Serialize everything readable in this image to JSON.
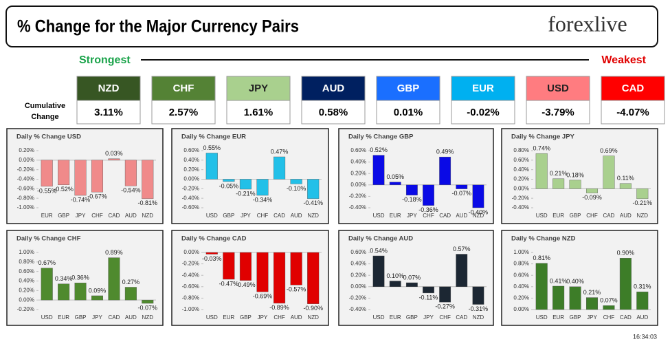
{
  "header": {
    "title": "% Change for the Major Currency Pairs",
    "logo": "forexlive"
  },
  "strongest": "Strongest",
  "weakest": "Weakest",
  "cumulative_label": "Cumulative Change",
  "ranking": [
    {
      "currency": "NZD",
      "change": "3.11%",
      "color": "#375623"
    },
    {
      "currency": "CHF",
      "change": "2.57%",
      "color": "#548235"
    },
    {
      "currency": "JPY",
      "change": "1.61%",
      "color": "#a9d08e"
    },
    {
      "currency": "AUD",
      "change": "0.58%",
      "color": "#002060"
    },
    {
      "currency": "GBP",
      "change": "0.01%",
      "color": "#1a6fff"
    },
    {
      "currency": "EUR",
      "change": "-0.02%",
      "color": "#00b0f0"
    },
    {
      "currency": "USD",
      "change": "-3.79%",
      "color": "#ff7c80"
    },
    {
      "currency": "CAD",
      "change": "-4.07%",
      "color": "#ff0000"
    }
  ],
  "chart_data": [
    {
      "type": "bar",
      "title": "Daily % Change USD",
      "color": "#f08a8a",
      "categories": [
        "EUR",
        "GBP",
        "JPY",
        "CHF",
        "CAD",
        "AUD",
        "NZD"
      ],
      "values": [
        -0.55,
        -0.52,
        -0.74,
        -0.67,
        0.03,
        -0.54,
        -0.81
      ],
      "value_labels": [
        "-0.55%",
        "-0.52%",
        "-0.74%",
        "-0.67%",
        "0.03%",
        "-0.54%",
        "-0.81%"
      ],
      "ylim": [
        -1.0,
        0.2
      ],
      "yticks": [
        {
          "value": 0.2,
          "label": "0.20%"
        },
        {
          "value": 0,
          "label": "0.00%"
        },
        {
          "value": -0.2,
          "label": "-0.20%"
        },
        {
          "value": -0.4,
          "label": "-0.40%"
        },
        {
          "value": -0.6,
          "label": "-0.60%"
        },
        {
          "value": -0.8,
          "label": "-0.80%"
        },
        {
          "value": -1.0,
          "label": "-1.00%"
        }
      ]
    },
    {
      "type": "bar",
      "title": "Daily % Change EUR",
      "color": "#22c0e8",
      "categories": [
        "USD",
        "GBP",
        "JPY",
        "CHF",
        "CAD",
        "AUD",
        "NZD"
      ],
      "values": [
        0.55,
        -0.05,
        -0.21,
        -0.34,
        0.47,
        -0.1,
        -0.41
      ],
      "value_labels": [
        "0.55%",
        "-0.05%",
        "-0.21%",
        "-0.34%",
        "0.47%",
        "-0.10%",
        "-0.41%"
      ],
      "ylim": [
        -0.6,
        0.6
      ],
      "yticks": [
        {
          "value": 0.6,
          "label": "0.60%"
        },
        {
          "value": 0.4,
          "label": "0.40%"
        },
        {
          "value": 0.2,
          "label": "0.20%"
        },
        {
          "value": 0,
          "label": "0.00%"
        },
        {
          "value": -0.2,
          "label": "-0.20%"
        },
        {
          "value": -0.4,
          "label": "-0.40%"
        },
        {
          "value": -0.6,
          "label": "-0.60%"
        }
      ]
    },
    {
      "type": "bar",
      "title": "Daily % Change GBP",
      "color": "#0a0ae6",
      "categories": [
        "USD",
        "EUR",
        "JPY",
        "CHF",
        "CAD",
        "AUD",
        "NZD"
      ],
      "values": [
        0.52,
        0.05,
        -0.18,
        -0.36,
        0.49,
        -0.07,
        -0.4
      ],
      "value_labels": [
        "0.52%",
        "0.05%",
        "-0.18%",
        "-0.36%",
        "0.49%",
        "-0.07%",
        "-0.40%"
      ],
      "ylim": [
        -0.4,
        0.6
      ],
      "yticks": [
        {
          "value": 0.6,
          "label": "0.60%"
        },
        {
          "value": 0.4,
          "label": "0.40%"
        },
        {
          "value": 0.2,
          "label": "0.20%"
        },
        {
          "value": 0,
          "label": "0.00%"
        },
        {
          "value": -0.2,
          "label": "-0.20%"
        },
        {
          "value": -0.4,
          "label": "-0.40%"
        }
      ]
    },
    {
      "type": "bar",
      "title": "Daily % Change JPY",
      "color": "#a9d08e",
      "categories": [
        "USD",
        "EUR",
        "GBP",
        "CHF",
        "CAD",
        "AUD",
        "NZD"
      ],
      "values": [
        0.74,
        0.21,
        0.18,
        -0.09,
        0.69,
        0.11,
        -0.21
      ],
      "value_labels": [
        "0.74%",
        "0.21%",
        "0.18%",
        "-0.09%",
        "0.69%",
        "0.11%",
        "-0.21%"
      ],
      "ylim": [
        -0.4,
        0.8
      ],
      "yticks": [
        {
          "value": 0.8,
          "label": "0.80%"
        },
        {
          "value": 0.6,
          "label": "0.60%"
        },
        {
          "value": 0.4,
          "label": "0.40%"
        },
        {
          "value": 0.2,
          "label": "0.20%"
        },
        {
          "value": 0,
          "label": "0.00%"
        },
        {
          "value": -0.2,
          "label": "-0.20%"
        },
        {
          "value": -0.4,
          "label": "-0.40%"
        }
      ]
    },
    {
      "type": "bar",
      "title": "Daily % Change CHF",
      "color": "#4f8a2e",
      "categories": [
        "USD",
        "EUR",
        "GBP",
        "JPY",
        "CAD",
        "AUD",
        "NZD"
      ],
      "values": [
        0.67,
        0.34,
        0.36,
        0.09,
        0.89,
        0.27,
        -0.07
      ],
      "value_labels": [
        "0.67%",
        "0.34%",
        "0.36%",
        "0.09%",
        "0.89%",
        "0.27%",
        "-0.07%"
      ],
      "ylim": [
        -0.2,
        1.0
      ],
      "yticks": [
        {
          "value": 1.0,
          "label": "1.00%"
        },
        {
          "value": 0.8,
          "label": "0.80%"
        },
        {
          "value": 0.6,
          "label": "0.60%"
        },
        {
          "value": 0.4,
          "label": "0.40%"
        },
        {
          "value": 0.2,
          "label": "0.20%"
        },
        {
          "value": 0,
          "label": "0.00%"
        },
        {
          "value": -0.2,
          "label": "-0.20%"
        }
      ]
    },
    {
      "type": "bar",
      "title": "Daily % Change CAD",
      "color": "#e00000",
      "categories": [
        "USD",
        "EUR",
        "GBP",
        "JPY",
        "CHF",
        "AUD",
        "NZD"
      ],
      "values": [
        -0.03,
        -0.47,
        -0.49,
        -0.69,
        -0.89,
        -0.57,
        -0.9
      ],
      "value_labels": [
        "-0.03%",
        "-0.47%",
        "-0.49%",
        "-0.69%",
        "-0.89%",
        "-0.57%",
        "-0.90%"
      ],
      "ylim": [
        -1.0,
        0.0
      ],
      "yticks": [
        {
          "value": 0,
          "label": "0.00%"
        },
        {
          "value": -0.2,
          "label": "-0.20%"
        },
        {
          "value": -0.4,
          "label": "-0.40%"
        },
        {
          "value": -0.6,
          "label": "-0.60%"
        },
        {
          "value": -0.8,
          "label": "-0.80%"
        },
        {
          "value": -1.0,
          "label": "-1.00%"
        }
      ]
    },
    {
      "type": "bar",
      "title": "Daily % Change AUD",
      "color": "#1c2733",
      "categories": [
        "USD",
        "EUR",
        "GBP",
        "JPY",
        "CHF",
        "CAD",
        "NZD"
      ],
      "values": [
        0.54,
        0.1,
        0.07,
        -0.11,
        -0.27,
        0.57,
        -0.31
      ],
      "value_labels": [
        "0.54%",
        "0.10%",
        "0.07%",
        "-0.11%",
        "-0.27%",
        "0.57%",
        "-0.31%"
      ],
      "ylim": [
        -0.4,
        0.6
      ],
      "yticks": [
        {
          "value": 0.6,
          "label": "0.60%"
        },
        {
          "value": 0.4,
          "label": "0.40%"
        },
        {
          "value": 0.2,
          "label": "0.20%"
        },
        {
          "value": 0,
          "label": "0.00%"
        },
        {
          "value": -0.2,
          "label": "-0.20%"
        },
        {
          "value": -0.4,
          "label": "-0.40%"
        }
      ]
    },
    {
      "type": "bar",
      "title": "Daily % Change NZD",
      "color": "#3d7d28",
      "categories": [
        "USD",
        "EUR",
        "GBP",
        "JPY",
        "CHF",
        "CAD",
        "AUD"
      ],
      "values": [
        0.81,
        0.41,
        0.4,
        0.21,
        0.07,
        0.9,
        0.31
      ],
      "value_labels": [
        "0.81%",
        "0.41%",
        "0.40%",
        "0.21%",
        "0.07%",
        "0.90%",
        "0.31%"
      ],
      "ylim": [
        0.0,
        1.0
      ],
      "yticks": [
        {
          "value": 1.0,
          "label": "1.00%"
        },
        {
          "value": 0.8,
          "label": "0.80%"
        },
        {
          "value": 0.6,
          "label": "0.60%"
        },
        {
          "value": 0.4,
          "label": "0.40%"
        },
        {
          "value": 0.2,
          "label": "0.20%"
        },
        {
          "value": 0,
          "label": "0.00%"
        }
      ]
    }
  ],
  "timestamp": "16:34:03"
}
